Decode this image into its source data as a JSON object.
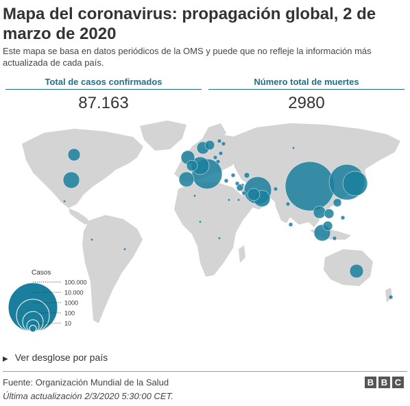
{
  "title": "Mapa del coronavirus: propagación global, 2 de marzo de 2020",
  "subtitle": "Este mapa se basa en datos periódicos de la OMS y puede que no refleje la información más actualizada de cada país.",
  "stats": {
    "cases_label": "Total de casos confirmados",
    "cases_value": "87.163",
    "deaths_label": "Número total de muertes",
    "deaths_value": "2980"
  },
  "colors": {
    "land": "#d4d4d4",
    "bubble": "#1a7f9c",
    "accent": "#1f6e8c"
  },
  "legend": {
    "title": "Casos",
    "levels": [
      {
        "label": "100.000",
        "value": 100000
      },
      {
        "label": "10.000",
        "value": 10000
      },
      {
        "label": "1000",
        "value": 1000
      },
      {
        "label": "100",
        "value": 100
      },
      {
        "label": "10",
        "value": 10
      }
    ]
  },
  "expander": {
    "label": "Ver desglose por país"
  },
  "footer": {
    "source": "Fuente: Organización Mundial de la Salud",
    "updated": "Última actualización 2/3/2020 5:30:00 CET.",
    "logo": [
      "B",
      "B",
      "C"
    ]
  }
}
